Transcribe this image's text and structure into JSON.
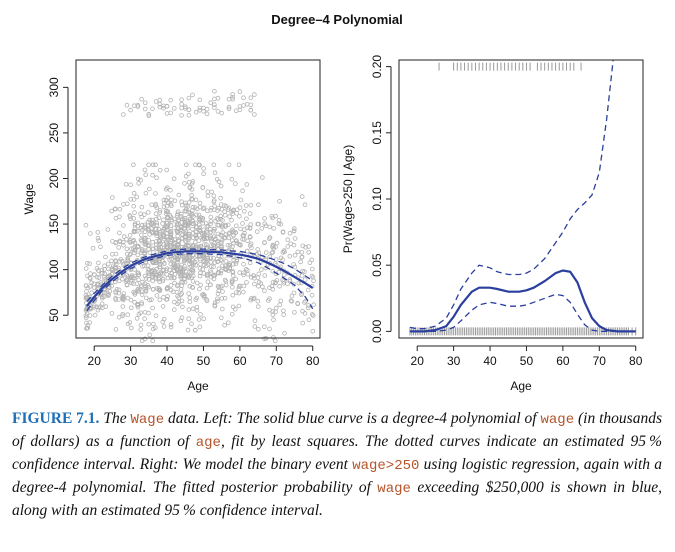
{
  "figure_title": "Degree–4 Polynomial",
  "colors": {
    "fit": "#2a3f9e",
    "points": "#b3b3b3",
    "rug": "#9a9a9a",
    "caption_label": "#1f6fb5",
    "caption_code": "#b5542a"
  },
  "chart_data": [
    {
      "type": "scatter",
      "title": "",
      "xlabel": "Age",
      "ylabel": "Wage",
      "xlim": [
        15,
        82
      ],
      "ylim": [
        25,
        330
      ],
      "xticks": [
        "20",
        "30",
        "40",
        "50",
        "60",
        "70",
        "80"
      ],
      "yticks": [
        "50",
        "100",
        "150",
        "200",
        "250",
        "300"
      ],
      "grid": false,
      "series": [
        {
          "style": "solid",
          "x": [
            18,
            20,
            22,
            25,
            28,
            30,
            33,
            35,
            38,
            40,
            42,
            45,
            48,
            50,
            52,
            55,
            58,
            60,
            62,
            65,
            68,
            70,
            72,
            75,
            78,
            80
          ],
          "y": [
            60,
            70,
            79,
            90,
            99,
            104,
            110,
            113,
            116,
            118,
            119,
            120,
            120,
            120,
            119.5,
            119,
            117.5,
            116.5,
            115,
            112,
            107,
            103,
            99,
            92,
            85,
            80
          ]
        },
        {
          "style": "dashed",
          "x": [
            18,
            20,
            22,
            25,
            28,
            30,
            33,
            35,
            38,
            40,
            42,
            45,
            48,
            50,
            52,
            55,
            58,
            60,
            62,
            65,
            68,
            70,
            72,
            75,
            78,
            80
          ],
          "y": [
            65,
            74,
            82,
            93,
            102,
            107,
            112.5,
            115.5,
            118.5,
            120.5,
            121.5,
            122.5,
            122.5,
            122.5,
            122,
            121.5,
            120.5,
            120,
            118.5,
            116.5,
            113,
            110,
            107,
            101,
            93,
            88
          ]
        },
        {
          "style": "dashed",
          "x": [
            18,
            20,
            22,
            25,
            28,
            30,
            33,
            35,
            38,
            40,
            42,
            45,
            48,
            50,
            52,
            55,
            58,
            60,
            62,
            65,
            68,
            70,
            72,
            75,
            78,
            80
          ],
          "y": [
            55,
            66,
            76,
            87,
            96,
            101,
            107.5,
            110.5,
            113.5,
            115.5,
            116.5,
            117.5,
            117.5,
            117.5,
            117,
            116.5,
            114.5,
            113,
            111.5,
            107.5,
            101,
            96,
            91,
            83,
            70,
            57
          ]
        }
      ]
    },
    {
      "type": "line",
      "title": "",
      "xlabel": "Age",
      "ylabel": "Pr(Wage>250 | Age)",
      "xlim": [
        15,
        82
      ],
      "ylim": [
        -0.005,
        0.205
      ],
      "xticks": [
        "20",
        "30",
        "40",
        "50",
        "60",
        "70",
        "80"
      ],
      "yticks": [
        "0.00",
        "0.05",
        "0.10",
        "0.15",
        "0.20"
      ],
      "grid": false,
      "series": [
        {
          "style": "solid",
          "x": [
            18,
            20,
            22,
            25,
            28,
            30,
            32,
            35,
            37,
            40,
            42,
            45,
            48,
            50,
            52,
            55,
            58,
            60,
            62,
            64,
            66,
            68,
            70,
            72,
            75,
            78,
            80
          ],
          "y": [
            0.0,
            0.0,
            0.0,
            0.001,
            0.004,
            0.011,
            0.02,
            0.03,
            0.033,
            0.033,
            0.032,
            0.03,
            0.03,
            0.031,
            0.033,
            0.038,
            0.044,
            0.046,
            0.045,
            0.037,
            0.022,
            0.01,
            0.004,
            0.001,
            0.0,
            0.0,
            0.0
          ]
        },
        {
          "style": "dashed",
          "x": [
            18,
            20,
            22,
            25,
            28,
            30,
            32,
            35,
            37,
            40,
            42,
            45,
            48,
            50,
            52,
            55,
            58,
            60,
            62,
            64,
            66,
            68,
            70,
            72,
            74
          ],
          "y": [
            0.003,
            0.002,
            0.002,
            0.004,
            0.01,
            0.02,
            0.032,
            0.044,
            0.05,
            0.048,
            0.045,
            0.043,
            0.043,
            0.044,
            0.047,
            0.055,
            0.067,
            0.075,
            0.085,
            0.092,
            0.097,
            0.103,
            0.12,
            0.16,
            0.21
          ]
        },
        {
          "style": "dashed",
          "x": [
            18,
            20,
            22,
            25,
            28,
            30,
            32,
            35,
            37,
            40,
            42,
            45,
            48,
            50,
            52,
            55,
            58,
            60,
            62,
            64,
            66,
            68,
            70,
            72,
            75,
            78,
            80
          ],
          "y": [
            0.0,
            0.0,
            0.0,
            0.0,
            0.001,
            0.003,
            0.008,
            0.016,
            0.02,
            0.022,
            0.021,
            0.019,
            0.019,
            0.02,
            0.022,
            0.025,
            0.028,
            0.027,
            0.022,
            0.013,
            0.005,
            0.001,
            0.0,
            0.0,
            0.0,
            0.0,
            0.0
          ]
        }
      ]
    }
  ],
  "caption": {
    "label": "FIGURE 7.1.",
    "parts": [
      {
        "t": " The ",
        "code": false
      },
      {
        "t": "Wage",
        "code": true
      },
      {
        "t": " data. Left: The solid blue curve is a degree-4 polynomial of ",
        "code": false
      },
      {
        "t": "wage",
        "code": true
      },
      {
        "t": " (in thousands of dollars) as a function of ",
        "code": false
      },
      {
        "t": "age",
        "code": true
      },
      {
        "t": ", fit by least squares. The dotted curves indicate an estimated 95 % confidence interval. Right: We model the binary event ",
        "code": false
      },
      {
        "t": "wage>250",
        "code": true
      },
      {
        "t": " using logistic regression, again with a degree-4 polynomial. The fitted posterior probability of ",
        "code": false
      },
      {
        "t": "wage",
        "code": true
      },
      {
        "t": " exceeding $250,000 is shown in blue, along with an estimated 95 % confidence interval.",
        "code": false
      }
    ]
  }
}
